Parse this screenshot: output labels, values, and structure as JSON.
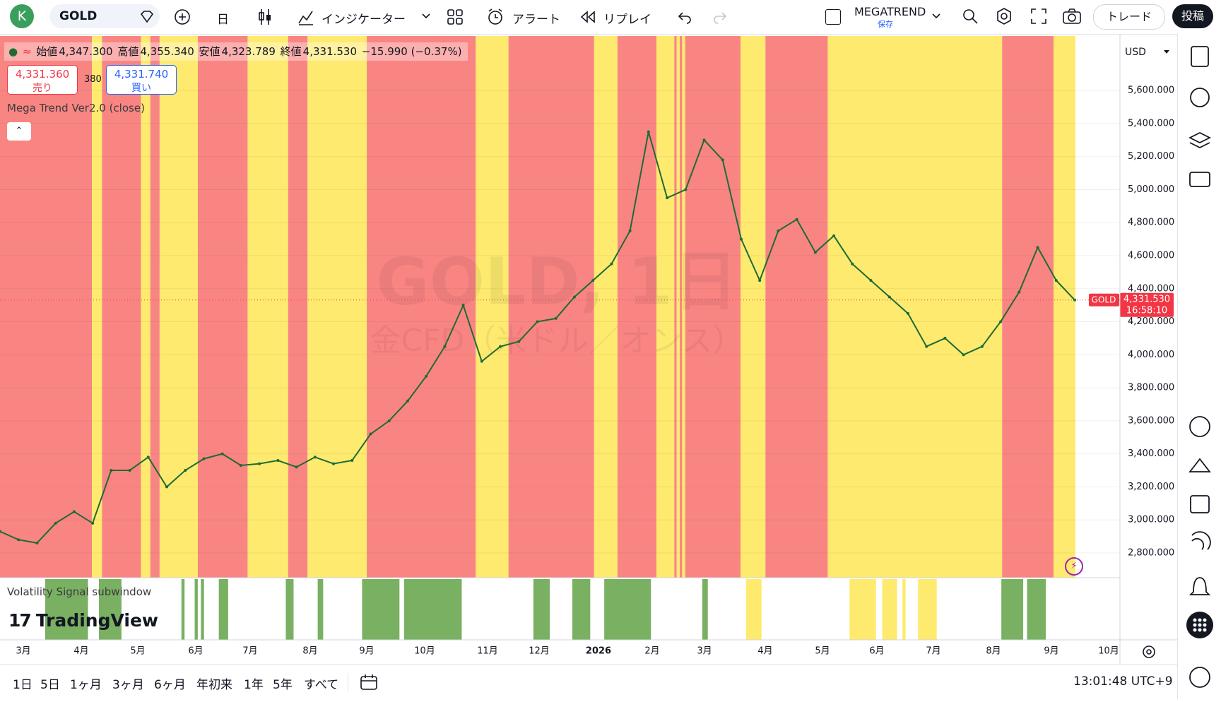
{
  "toolbar": {
    "avatar": "K",
    "symbol": "GOLD",
    "interval": "日",
    "indicators": "インジケーター",
    "alert": "アラート",
    "replay": "リプレイ",
    "layout_name": "MEGATREND",
    "layout_status": "保存",
    "trade": "トレード",
    "publish": "投稿"
  },
  "legend": {
    "open_label": "始値",
    "open": "4,347.300",
    "high_label": "高値",
    "high": "4,355.340",
    "low_label": "安値",
    "low": "4,323.789",
    "close_label": "終値",
    "close": "4,331.530",
    "change": "−15.990 (−0.37%)",
    "sell_price": "4,331.360",
    "sell": "売り",
    "spread": "380",
    "buy_price": "4,331.740",
    "buy": "買い",
    "indicator": "Mega Trend Ver2.0 (close)",
    "subwindow": "Volatility Signal subwindow"
  },
  "watermark": {
    "title": "GOLD, 1日",
    "description": "金CFD（米ドル／オンス）"
  },
  "price_axis": {
    "currency": "USD",
    "last_symbol": "GOLD",
    "last_price": "4,331.530",
    "countdown": "16:58:10"
  },
  "branding": "TradingView",
  "chart_data": {
    "type": "line",
    "color": "#1e6b34",
    "values": [
      2930,
      2880,
      2860,
      2980,
      3050,
      2980,
      3300,
      3300,
      3380,
      3200,
      3300,
      3370,
      3400,
      3330,
      3340,
      3360,
      3320,
      3380,
      3340,
      3360,
      3520,
      3600,
      3720,
      3870,
      4050,
      4300,
      3960,
      4050,
      4080,
      4200,
      4220,
      4350,
      4450,
      4550,
      4750,
      5350,
      4950,
      5000,
      5300,
      5180,
      4700,
      4450,
      4750,
      4820,
      4620,
      4720,
      4550,
      4450,
      4350,
      4250,
      4050,
      4100,
      4000,
      4050,
      4200,
      4380,
      4650,
      4450,
      4331.53
    ],
    "x_axis_labels": [
      "3月",
      "4月",
      "5月",
      "6月",
      "7月",
      "8月",
      "9月",
      "10月",
      "11月",
      "12月",
      "2026",
      "2月",
      "3月",
      "4月",
      "5月",
      "6月",
      "7月",
      "8月",
      "9月",
      "10月"
    ],
    "ylim": [
      2650,
      5930
    ],
    "yticks": [
      {
        "value": 2800,
        "label": "2,800.000"
      },
      {
        "value": 3000,
        "label": "3,000.000"
      },
      {
        "value": 3200,
        "label": "3,200.000"
      },
      {
        "value": 3400,
        "label": "3,400.000"
      },
      {
        "value": 3600,
        "label": "3,600.000"
      },
      {
        "value": 3800,
        "label": "3,800.000"
      },
      {
        "value": 4000,
        "label": "4,000.000"
      },
      {
        "value": 4200,
        "label": "4,200.000"
      },
      {
        "value": 4400,
        "label": "4,400.000"
      },
      {
        "value": 4600,
        "label": "4,600.000"
      },
      {
        "value": 4800,
        "label": "4,800.000"
      },
      {
        "value": 5000,
        "label": "5,000.000"
      },
      {
        "value": 5200,
        "label": "5,200.000"
      },
      {
        "value": 5400,
        "label": "5,400.000"
      },
      {
        "value": 5600,
        "label": "5,600.000"
      }
    ],
    "grid": true
  },
  "bottom_bar": {
    "ranges": [
      "1日",
      "5日",
      "1ヶ月",
      "3ヶ月",
      "6ヶ月",
      "年初来",
      "1年",
      "5年",
      "すべて"
    ],
    "clock": "13:01:48 UTC+9"
  }
}
